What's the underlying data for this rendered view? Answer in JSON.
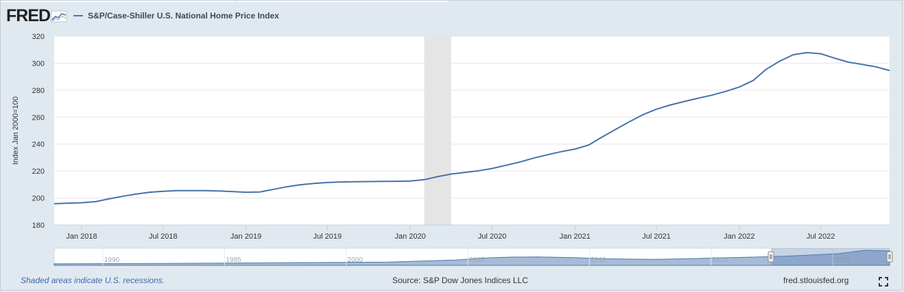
{
  "header": {
    "logo_text": "FRED",
    "legend_label": "S&P/Case-Shiller U.S. National Home Price Index",
    "series_color": "#4572a7"
  },
  "footer": {
    "recession_note": "Shaded areas indicate U.S. recessions.",
    "source": "Source: S&P Dow Jones Indices LLC",
    "site": "fred.stlouisfed.org"
  },
  "icons": {
    "expand": "expand-icon",
    "logo_graph": "fred-graph-icon"
  },
  "navigator": {
    "tick_labels": [
      "1990",
      "1995",
      "2000",
      "2005",
      "2010",
      "2015",
      "2020"
    ]
  },
  "chart_data": {
    "type": "line",
    "title": "",
    "xlabel": "",
    "ylabel": "Index Jan 2000=100",
    "ylim": [
      180,
      320
    ],
    "yticks": [
      180,
      200,
      220,
      240,
      260,
      280,
      300,
      320
    ],
    "xrange": [
      "2017-11-01",
      "2022-12-01"
    ],
    "xtick_labels": [
      "Jan 2018",
      "Jul 2018",
      "Jan 2019",
      "Jul 2019",
      "Jan 2020",
      "Jul 2020",
      "Jan 2021",
      "Jul 2021",
      "Jan 2022",
      "Jul 2022"
    ],
    "xtick_dates": [
      "2018-01-01",
      "2018-07-01",
      "2019-01-01",
      "2019-07-01",
      "2020-01-01",
      "2020-07-01",
      "2021-01-01",
      "2021-07-01",
      "2022-01-01",
      "2022-07-01"
    ],
    "grid": true,
    "legend": "top-left",
    "recessions": [
      {
        "start": "2020-02-01",
        "end": "2020-04-01"
      }
    ],
    "recession_color": "#e5e5e5",
    "series": [
      {
        "name": "S&P/Case-Shiller U.S. National Home Price Index",
        "color": "#4572a7",
        "x": [
          "2017-11-01",
          "2017-12-01",
          "2018-01-01",
          "2018-02-01",
          "2018-03-01",
          "2018-04-01",
          "2018-05-01",
          "2018-06-01",
          "2018-07-01",
          "2018-08-01",
          "2018-09-01",
          "2018-10-01",
          "2018-11-01",
          "2018-12-01",
          "2019-01-01",
          "2019-02-01",
          "2019-03-01",
          "2019-04-01",
          "2019-05-01",
          "2019-06-01",
          "2019-07-01",
          "2019-08-01",
          "2019-09-01",
          "2019-10-01",
          "2019-11-01",
          "2019-12-01",
          "2020-01-01",
          "2020-02-01",
          "2020-03-01",
          "2020-04-01",
          "2020-05-01",
          "2020-06-01",
          "2020-07-01",
          "2020-08-01",
          "2020-09-01",
          "2020-10-01",
          "2020-11-01",
          "2020-12-01",
          "2021-01-01",
          "2021-02-01",
          "2021-03-01",
          "2021-04-01",
          "2021-05-01",
          "2021-06-01",
          "2021-07-01",
          "2021-08-01",
          "2021-09-01",
          "2021-10-01",
          "2021-11-01",
          "2021-12-01",
          "2022-01-01",
          "2022-02-01",
          "2022-03-01",
          "2022-04-01",
          "2022-05-01",
          "2022-06-01",
          "2022-07-01",
          "2022-08-01",
          "2022-09-01",
          "2022-10-01",
          "2022-11-01",
          "2022-12-01"
        ],
        "values": [
          195.8,
          196.2,
          196.5,
          197.3,
          199.3,
          201.2,
          202.9,
          204.3,
          205.0,
          205.5,
          205.5,
          205.5,
          205.2,
          204.8,
          204.3,
          204.5,
          206.3,
          208.3,
          209.8,
          210.8,
          211.5,
          211.9,
          212.1,
          212.2,
          212.3,
          212.4,
          212.6,
          213.6,
          215.8,
          217.8,
          219.0,
          220.2,
          221.9,
          224.3,
          226.7,
          229.6,
          232.1,
          234.4,
          236.3,
          239.4,
          245.0,
          250.8,
          256.4,
          261.8,
          265.9,
          269.0,
          271.6,
          274.0,
          276.3,
          279.0,
          282.3,
          287.2,
          295.3,
          301.6,
          306.3,
          307.9,
          307.0,
          303.7,
          300.7,
          299.1,
          297.3,
          294.6
        ]
      }
    ]
  }
}
